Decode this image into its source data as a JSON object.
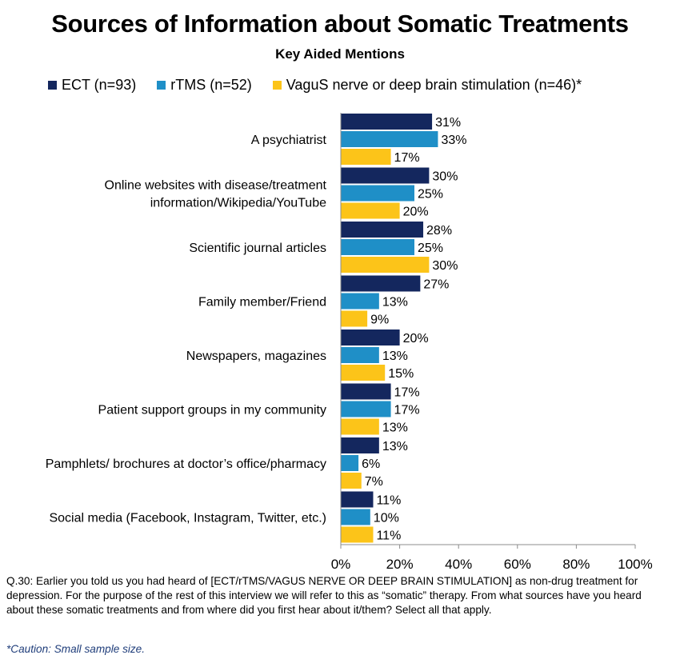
{
  "title": "Sources of Information about Somatic Treatments",
  "subtitle": "Key Aided Mentions",
  "colors": {
    "ect": "#14275e",
    "rtms": "#1f8fc7",
    "vagus": "#fcc419",
    "gridline": "#bfbfbf"
  },
  "legend": [
    {
      "label": "ECT (n=93)",
      "color": "#14275e"
    },
    {
      "label": "rTMS (n=52)",
      "color": "#1f8fc7"
    },
    {
      "label": "VaguS nerve or deep brain stimulation (n=46)*",
      "color": "#fcc419"
    }
  ],
  "chart_data": {
    "type": "bar",
    "orientation": "horizontal",
    "title": "Sources of Information about Somatic Treatments",
    "subtitle": "Key Aided Mentions",
    "categories": [
      [
        "A psychiatrist"
      ],
      [
        "Online websites with disease/treatment",
        "information/Wikipedia/YouTube"
      ],
      [
        "Scientific journal articles"
      ],
      [
        "Family member/Friend"
      ],
      [
        "Newspapers, magazines"
      ],
      [
        "Patient support groups in my community"
      ],
      [
        "Pamphlets/ brochures at doctor’s office/pharmacy"
      ],
      [
        "Social media (Facebook, Instagram, Twitter, etc.)"
      ]
    ],
    "series": [
      {
        "name": "ECT (n=93)",
        "color": "#14275e",
        "values": [
          31,
          30,
          28,
          27,
          20,
          17,
          13,
          11
        ],
        "labels": [
          "31%",
          "30%",
          "28%",
          "27%",
          "20%",
          "17%",
          "13%",
          "11%"
        ]
      },
      {
        "name": "rTMS (n=52)",
        "color": "#1f8fc7",
        "values": [
          33,
          25,
          25,
          13,
          13,
          17,
          6,
          10
        ],
        "labels": [
          "33%",
          "25%",
          "25%",
          "13%",
          "13%",
          "17%",
          "6%",
          "10%"
        ]
      },
      {
        "name": "VaguS nerve or deep brain stimulation (n=46)*",
        "color": "#fcc419",
        "values": [
          17,
          20,
          30,
          9,
          15,
          13,
          7,
          11
        ],
        "labels": [
          "17%",
          "20%",
          "30%",
          "9%",
          "15%",
          "13%",
          "7%",
          "11%"
        ]
      }
    ],
    "xlim": [
      0,
      100
    ],
    "xticks": [
      "0%",
      "20%",
      "40%",
      "60%",
      "80%",
      "100%"
    ],
    "grid": false,
    "legend_position": "top"
  },
  "footnote": "Q.30: Earlier you told us you had heard of [ECT/rTMS/VAGUS NERVE OR DEEP BRAIN STIMULATION] as non-drug treatment for depression.  For the purpose of the rest of this interview we will refer to this as “somatic” therapy. From what sources have you heard about these somatic treatments and from where did you first hear about it/them? Select all that apply.",
  "caution": "*Caution: Small sample size."
}
